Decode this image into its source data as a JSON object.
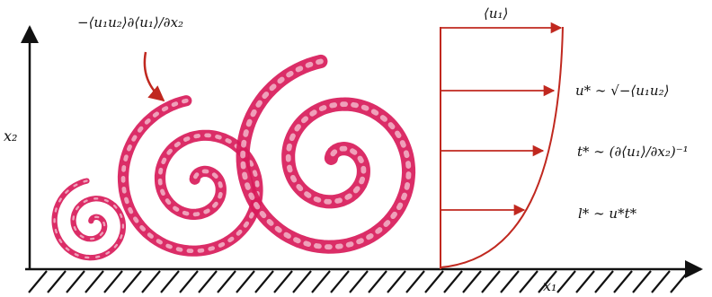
{
  "colors": {
    "eddy": "#d81b5a",
    "profile": "#c0281f",
    "axis": "#111111"
  },
  "labels": {
    "production": "−⟨u₁u₂⟩∂⟨u₁⟩/∂x₂",
    "mean_velocity": "⟨u₁⟩",
    "x1": "x₁",
    "x2": "x₂"
  },
  "scales": {
    "velocity": "u* ∼ √−⟨u₁u₂⟩",
    "time": "t* ∼ (∂⟨u₁⟩/∂x₂)⁻¹",
    "length": "l* ∼ u*t*"
  }
}
